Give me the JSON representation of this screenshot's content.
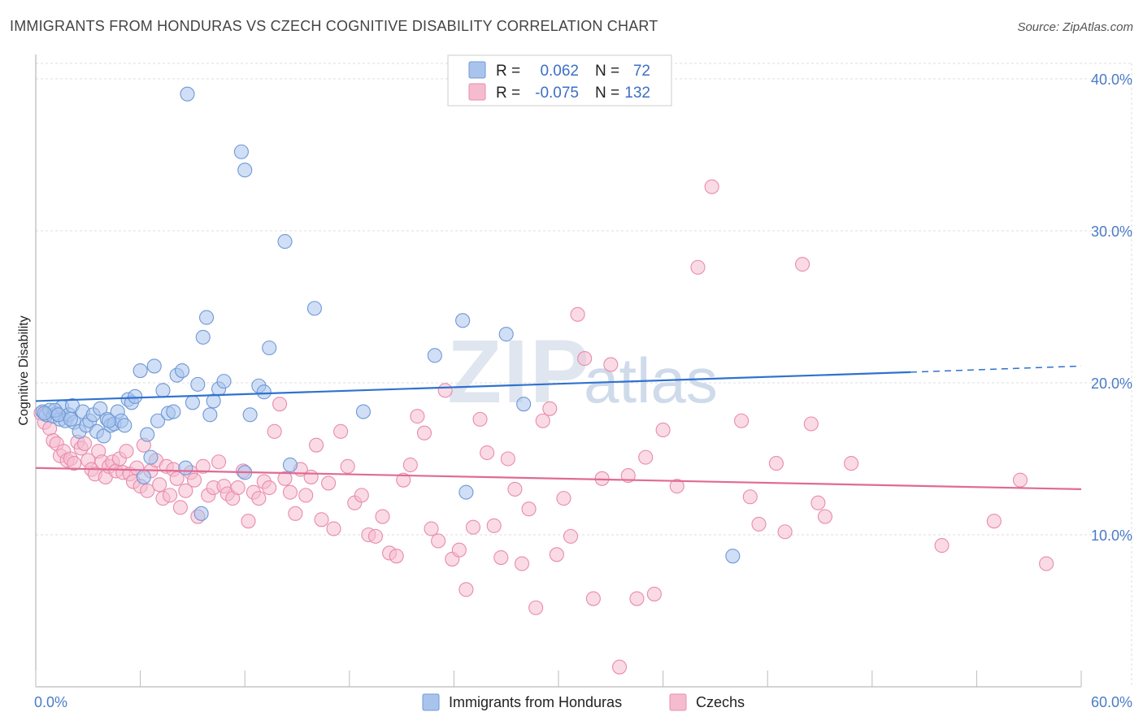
{
  "title": "IMMIGRANTS FROM HONDURAS VS CZECH COGNITIVE DISABILITY CORRELATION CHART",
  "source": "Source: ZipAtlas.com",
  "watermark": {
    "zip": "ZIP",
    "atlas": "atlas"
  },
  "colors": {
    "blue_fill": "#a9c4ec",
    "blue_stroke": "#6f98d6",
    "blue_line": "#2f72cf",
    "pink_fill": "#f5bcd0",
    "pink_stroke": "#e88cab",
    "pink_line": "#e06a95",
    "grid": "#dddddd",
    "axis_text": "#4a7cc7"
  },
  "legend": {
    "rows": [
      {
        "r_label": "R =",
        "r_value": "0.062",
        "n_label": "N =",
        "n_value": "72"
      },
      {
        "r_label": "R =",
        "r_value": "-0.075",
        "n_label": "N =",
        "n_value": "132"
      }
    ]
  },
  "chart_data": {
    "type": "scatter",
    "title": "IMMIGRANTS FROM HONDURAS VS CZECH COGNITIVE DISABILITY CORRELATION CHART",
    "xlabel": "",
    "ylabel": "Cognitive Disability",
    "xlim": [
      0,
      60
    ],
    "ylim": [
      0,
      41
    ],
    "x_tick_labels": [
      "0.0%",
      "60.0%"
    ],
    "y_ticks": [
      10,
      20,
      30,
      40
    ],
    "y_tick_labels": [
      "10.0%",
      "20.0%",
      "30.0%",
      "40.0%"
    ],
    "grid": true,
    "legend_position": "top-center",
    "series": [
      {
        "name": "Immigrants from Honduras",
        "color": "#a9c4ec",
        "trend": {
          "x": [
            0,
            50.2
          ],
          "y": [
            18.8,
            20.7
          ],
          "dashed_to": [
            60,
            21.1
          ]
        },
        "points": [
          [
            0.4,
            18.1
          ],
          [
            0.6,
            17.9
          ],
          [
            0.8,
            18.2
          ],
          [
            1.0,
            17.8
          ],
          [
            1.2,
            18.0
          ],
          [
            1.4,
            17.6
          ],
          [
            1.5,
            18.4
          ],
          [
            1.7,
            17.5
          ],
          [
            1.9,
            17.9
          ],
          [
            2.1,
            18.5
          ],
          [
            2.2,
            17.4
          ],
          [
            2.5,
            16.8
          ],
          [
            2.7,
            18.1
          ],
          [
            2.9,
            17.2
          ],
          [
            3.1,
            17.5
          ],
          [
            3.3,
            17.9
          ],
          [
            3.5,
            16.8
          ],
          [
            3.7,
            18.3
          ],
          [
            3.9,
            16.5
          ],
          [
            4.1,
            17.6
          ],
          [
            4.3,
            17.2
          ],
          [
            4.5,
            17.3
          ],
          [
            4.7,
            18.1
          ],
          [
            4.9,
            17.5
          ],
          [
            5.1,
            17.2
          ],
          [
            5.3,
            18.9
          ],
          [
            5.5,
            18.7
          ],
          [
            5.7,
            19.1
          ],
          [
            6.0,
            20.8
          ],
          [
            6.2,
            13.8
          ],
          [
            6.4,
            16.6
          ],
          [
            6.6,
            15.1
          ],
          [
            6.8,
            21.1
          ],
          [
            7.0,
            17.5
          ],
          [
            7.3,
            19.5
          ],
          [
            7.6,
            18.0
          ],
          [
            7.9,
            18.1
          ],
          [
            8.1,
            20.5
          ],
          [
            8.4,
            20.8
          ],
          [
            8.6,
            14.4
          ],
          [
            9.0,
            18.7
          ],
          [
            9.3,
            19.9
          ],
          [
            9.6,
            23.0
          ],
          [
            10.0,
            17.9
          ],
          [
            10.2,
            18.8
          ],
          [
            10.5,
            19.6
          ],
          [
            10.8,
            20.1
          ],
          [
            8.7,
            39.0
          ],
          [
            11.8,
            35.2
          ],
          [
            12.0,
            14.1
          ],
          [
            12.3,
            17.9
          ],
          [
            12.8,
            19.8
          ],
          [
            13.1,
            19.4
          ],
          [
            13.4,
            22.3
          ],
          [
            14.3,
            29.3
          ],
          [
            14.6,
            14.6
          ],
          [
            16.0,
            24.9
          ],
          [
            18.8,
            18.1
          ],
          [
            22.9,
            21.8
          ],
          [
            24.5,
            24.1
          ],
          [
            24.7,
            12.8
          ],
          [
            27.0,
            23.2
          ],
          [
            28.0,
            18.6
          ],
          [
            40.0,
            8.6
          ],
          [
            9.8,
            24.3
          ],
          [
            12.0,
            34.0
          ],
          [
            9.5,
            11.4
          ],
          [
            4.2,
            17.5
          ],
          [
            1.1,
            18.2
          ],
          [
            1.3,
            17.9
          ],
          [
            0.5,
            18.0
          ],
          [
            2.0,
            17.6
          ]
        ]
      },
      {
        "name": "Czechs",
        "color": "#f5bcd0",
        "trend": {
          "x": [
            0,
            60
          ],
          "y": [
            14.4,
            13.0
          ]
        },
        "points": [
          [
            0.3,
            18.0
          ],
          [
            0.5,
            17.4
          ],
          [
            0.8,
            17.0
          ],
          [
            1.0,
            16.2
          ],
          [
            1.2,
            16.0
          ],
          [
            1.4,
            15.2
          ],
          [
            1.6,
            15.5
          ],
          [
            1.8,
            14.9
          ],
          [
            2.0,
            15.0
          ],
          [
            2.2,
            14.7
          ],
          [
            2.4,
            16.1
          ],
          [
            2.6,
            15.7
          ],
          [
            2.8,
            16.0
          ],
          [
            3.0,
            14.9
          ],
          [
            3.2,
            14.3
          ],
          [
            3.4,
            14.0
          ],
          [
            3.6,
            15.5
          ],
          [
            3.8,
            14.8
          ],
          [
            4.0,
            13.8
          ],
          [
            4.2,
            14.5
          ],
          [
            4.4,
            14.8
          ],
          [
            4.6,
            14.2
          ],
          [
            4.8,
            15.0
          ],
          [
            5.0,
            14.1
          ],
          [
            5.2,
            15.5
          ],
          [
            5.4,
            14.0
          ],
          [
            5.6,
            13.5
          ],
          [
            5.8,
            14.4
          ],
          [
            6.0,
            13.2
          ],
          [
            6.2,
            15.9
          ],
          [
            6.4,
            12.9
          ],
          [
            6.6,
            14.2
          ],
          [
            6.9,
            14.9
          ],
          [
            7.1,
            13.3
          ],
          [
            7.3,
            12.4
          ],
          [
            7.5,
            14.5
          ],
          [
            7.7,
            12.6
          ],
          [
            7.9,
            14.3
          ],
          [
            8.1,
            13.7
          ],
          [
            8.3,
            11.8
          ],
          [
            8.6,
            12.9
          ],
          [
            8.9,
            14.1
          ],
          [
            9.1,
            13.6
          ],
          [
            9.3,
            11.2
          ],
          [
            9.6,
            14.5
          ],
          [
            9.9,
            12.6
          ],
          [
            10.2,
            13.1
          ],
          [
            10.5,
            14.8
          ],
          [
            10.8,
            13.2
          ],
          [
            11.0,
            12.7
          ],
          [
            11.3,
            12.4
          ],
          [
            11.6,
            13.1
          ],
          [
            11.9,
            14.2
          ],
          [
            12.2,
            10.9
          ],
          [
            12.5,
            12.8
          ],
          [
            12.8,
            12.4
          ],
          [
            13.1,
            13.5
          ],
          [
            13.4,
            13.1
          ],
          [
            13.7,
            16.8
          ],
          [
            14.0,
            18.6
          ],
          [
            14.3,
            13.7
          ],
          [
            14.6,
            12.8
          ],
          [
            14.9,
            11.4
          ],
          [
            15.2,
            14.3
          ],
          [
            15.5,
            12.6
          ],
          [
            15.8,
            13.8
          ],
          [
            16.1,
            15.9
          ],
          [
            16.4,
            11.0
          ],
          [
            16.8,
            13.4
          ],
          [
            17.1,
            10.4
          ],
          [
            17.5,
            16.8
          ],
          [
            17.9,
            14.5
          ],
          [
            18.3,
            12.1
          ],
          [
            18.7,
            12.6
          ],
          [
            19.1,
            10.0
          ],
          [
            19.5,
            9.9
          ],
          [
            19.9,
            11.2
          ],
          [
            20.3,
            8.8
          ],
          [
            20.7,
            8.6
          ],
          [
            21.1,
            13.6
          ],
          [
            21.5,
            14.6
          ],
          [
            21.9,
            17.8
          ],
          [
            22.3,
            16.7
          ],
          [
            22.7,
            10.4
          ],
          [
            23.1,
            9.6
          ],
          [
            23.5,
            19.5
          ],
          [
            23.9,
            8.4
          ],
          [
            24.3,
            9.0
          ],
          [
            24.7,
            6.4
          ],
          [
            25.1,
            10.5
          ],
          [
            25.5,
            17.6
          ],
          [
            25.9,
            15.4
          ],
          [
            26.3,
            10.6
          ],
          [
            26.7,
            8.5
          ],
          [
            27.1,
            15.0
          ],
          [
            27.5,
            13.0
          ],
          [
            27.9,
            8.1
          ],
          [
            28.3,
            11.7
          ],
          [
            28.7,
            5.2
          ],
          [
            29.1,
            17.5
          ],
          [
            29.5,
            18.3
          ],
          [
            29.9,
            8.7
          ],
          [
            30.3,
            12.4
          ],
          [
            30.7,
            9.9
          ],
          [
            31.1,
            24.5
          ],
          [
            31.5,
            21.6
          ],
          [
            32.0,
            5.8
          ],
          [
            32.5,
            13.7
          ],
          [
            33.0,
            21.2
          ],
          [
            33.5,
            1.3
          ],
          [
            34.0,
            13.9
          ],
          [
            34.5,
            5.8
          ],
          [
            35.0,
            15.1
          ],
          [
            35.5,
            6.1
          ],
          [
            36.0,
            16.9
          ],
          [
            36.8,
            13.2
          ],
          [
            38.0,
            27.6
          ],
          [
            40.5,
            17.5
          ],
          [
            41.0,
            12.5
          ],
          [
            41.5,
            10.7
          ],
          [
            42.5,
            14.7
          ],
          [
            43.0,
            10.2
          ],
          [
            44.5,
            17.3
          ],
          [
            44.9,
            12.1
          ],
          [
            45.3,
            11.2
          ],
          [
            46.8,
            14.7
          ],
          [
            52.0,
            9.3
          ],
          [
            55.0,
            10.9
          ],
          [
            56.5,
            13.6
          ],
          [
            58.0,
            8.1
          ],
          [
            44.0,
            27.8
          ],
          [
            38.8,
            32.9
          ]
        ]
      }
    ]
  },
  "bottom_legend": [
    {
      "label": "Immigrants from Honduras"
    },
    {
      "label": "Czechs"
    }
  ]
}
